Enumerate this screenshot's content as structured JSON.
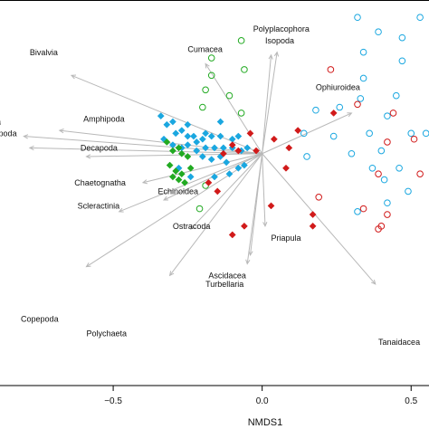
{
  "chart_data": {
    "type": "scatter",
    "title": "",
    "xlabel": "NMDS1",
    "ylabel": "",
    "xlim": [
      -0.88,
      0.56
    ],
    "ylim": [
      -0.8,
      0.53
    ],
    "x_ticks": [
      -0.5,
      0.0,
      0.5
    ],
    "x_tick_labels": [
      "−0.5",
      "0.0",
      "0.5"
    ],
    "grid": false,
    "colors": {
      "blue": "#1aa7e0",
      "red": "#d11a1a",
      "green": "#22aa22",
      "vector": "#b8b8b8",
      "frame": "#000000"
    },
    "series": [
      {
        "color": "blue",
        "shape": "open-circle",
        "points": [
          [
            0.32,
            0.47
          ],
          [
            0.53,
            0.47
          ],
          [
            0.39,
            0.42
          ],
          [
            0.47,
            0.4
          ],
          [
            0.34,
            0.35
          ],
          [
            0.47,
            0.32
          ],
          [
            0.34,
            0.26
          ],
          [
            0.33,
            0.19
          ],
          [
            0.45,
            0.2
          ],
          [
            0.26,
            0.16
          ],
          [
            0.18,
            0.15
          ],
          [
            0.42,
            0.13
          ],
          [
            0.36,
            0.07
          ],
          [
            0.14,
            0.07
          ],
          [
            0.24,
            0.06
          ],
          [
            0.5,
            0.07
          ],
          [
            0.55,
            0.07
          ],
          [
            0.4,
            0.01
          ],
          [
            0.3,
            0.0
          ],
          [
            0.15,
            -0.01
          ],
          [
            0.37,
            -0.05
          ],
          [
            0.46,
            -0.05
          ],
          [
            0.41,
            -0.09
          ],
          [
            0.49,
            -0.13
          ],
          [
            0.42,
            -0.17
          ],
          [
            0.32,
            -0.2
          ]
        ]
      },
      {
        "color": "red",
        "shape": "open-circle",
        "points": [
          [
            0.23,
            0.29
          ],
          [
            0.32,
            0.17
          ],
          [
            0.44,
            0.14
          ],
          [
            0.42,
            0.04
          ],
          [
            0.51,
            0.05
          ],
          [
            0.39,
            -0.07
          ],
          [
            0.53,
            -0.07
          ],
          [
            0.19,
            -0.15
          ],
          [
            0.34,
            -0.19
          ],
          [
            0.42,
            -0.21
          ],
          [
            0.4,
            -0.25
          ],
          [
            0.39,
            -0.26
          ]
        ]
      },
      {
        "color": "green",
        "shape": "open-circle",
        "points": [
          [
            -0.17,
            0.33
          ],
          [
            -0.07,
            0.39
          ],
          [
            -0.17,
            0.27
          ],
          [
            -0.06,
            0.29
          ],
          [
            -0.19,
            0.22
          ],
          [
            -0.11,
            0.2
          ],
          [
            -0.2,
            0.16
          ],
          [
            -0.07,
            0.14
          ],
          [
            -0.21,
            -0.19
          ],
          [
            -0.19,
            -0.11
          ]
        ]
      },
      {
        "color": "blue",
        "shape": "filled-diamond",
        "points": [
          [
            -0.34,
            0.13
          ],
          [
            -0.32,
            0.1
          ],
          [
            -0.3,
            0.11
          ],
          [
            -0.29,
            0.07
          ],
          [
            -0.27,
            0.08
          ],
          [
            -0.25,
            0.06
          ],
          [
            -0.23,
            0.06
          ],
          [
            -0.22,
            0.04
          ],
          [
            -0.2,
            0.05
          ],
          [
            -0.19,
            0.07
          ],
          [
            -0.17,
            0.06
          ],
          [
            -0.14,
            0.06
          ],
          [
            -0.1,
            0.05
          ],
          [
            -0.08,
            0.06
          ],
          [
            -0.33,
            0.05
          ],
          [
            -0.3,
            0.03
          ],
          [
            -0.27,
            0.02
          ],
          [
            -0.25,
            0.03
          ],
          [
            -0.22,
            0.01
          ],
          [
            -0.19,
            0.02
          ],
          [
            -0.16,
            0.02
          ],
          [
            -0.13,
            0.02
          ],
          [
            -0.1,
            0.02
          ],
          [
            -0.07,
            0.01
          ],
          [
            -0.05,
            0.02
          ],
          [
            -0.2,
            -0.01
          ],
          [
            -0.17,
            -0.02
          ],
          [
            -0.14,
            -0.01
          ],
          [
            -0.12,
            -0.03
          ],
          [
            -0.28,
            -0.05
          ],
          [
            -0.24,
            -0.08
          ],
          [
            -0.16,
            -0.08
          ],
          [
            -0.11,
            -0.07
          ],
          [
            -0.08,
            -0.05
          ],
          [
            -0.06,
            -0.04
          ],
          [
            -0.14,
            0.11
          ],
          [
            -0.25,
            0.1
          ]
        ]
      },
      {
        "color": "red",
        "shape": "filled-diamond",
        "points": [
          [
            0.24,
            0.14
          ],
          [
            0.12,
            0.08
          ],
          [
            -0.04,
            0.07
          ],
          [
            0.04,
            0.05
          ],
          [
            -0.02,
            0.01
          ],
          [
            -0.08,
            0.01
          ],
          [
            -0.1,
            0.03
          ],
          [
            0.09,
            0.02
          ],
          [
            -0.13,
            0.0
          ],
          [
            0.08,
            -0.05
          ],
          [
            -0.18,
            -0.1
          ],
          [
            -0.15,
            -0.13
          ],
          [
            0.03,
            -0.18
          ],
          [
            0.17,
            -0.21
          ],
          [
            -0.06,
            -0.25
          ],
          [
            -0.1,
            -0.28
          ],
          [
            0.17,
            -0.25
          ]
        ]
      },
      {
        "color": "green",
        "shape": "filled-diamond",
        "points": [
          [
            -0.32,
            0.04
          ],
          [
            -0.3,
            0.01
          ],
          [
            -0.28,
            0.02
          ],
          [
            -0.27,
            0.0
          ],
          [
            -0.25,
            -0.01
          ],
          [
            -0.31,
            -0.04
          ],
          [
            -0.29,
            -0.06
          ],
          [
            -0.27,
            -0.07
          ],
          [
            -0.24,
            -0.05
          ],
          [
            -0.3,
            -0.08
          ],
          [
            -0.28,
            -0.09
          ],
          [
            -0.26,
            -0.1
          ]
        ]
      }
    ],
    "vectors": [
      {
        "label": "Polyplacophora",
        "x": 0.05,
        "y": 0.35
      },
      {
        "label": "Isopoda",
        "x": 0.03,
        "y": 0.34
      },
      {
        "label": "Cumacea",
        "x": -0.19,
        "y": 0.31
      },
      {
        "label": "Bivalvia",
        "x": -0.64,
        "y": 0.27
      },
      {
        "label": "Ophiuroidea",
        "x": 0.3,
        "y": 0.14
      },
      {
        "label": "Amphipoda",
        "x": -0.68,
        "y": 0.08
      },
      {
        "label": "Decapoda",
        "x": -0.59,
        "y": -0.01
      },
      {
        "label": "",
        "x": -0.8,
        "y": 0.06
      },
      {
        "label": "",
        "x": -0.78,
        "y": 0.02
      },
      {
        "label": "Chaetognatha",
        "x": -0.4,
        "y": -0.1
      },
      {
        "label": "Echinoidea",
        "x": -0.33,
        "y": -0.16
      },
      {
        "label": "Scleractinia",
        "x": -0.48,
        "y": -0.2
      },
      {
        "label": "Ostracoda",
        "x": -0.24,
        "y": -0.26
      },
      {
        "label": "Priapula",
        "x": 0.01,
        "y": -0.25
      },
      {
        "label": "Ascidacea",
        "x": -0.04,
        "y": -0.35
      },
      {
        "label": "Turbellaria",
        "x": -0.05,
        "y": -0.38
      },
      {
        "label": "Copepoda",
        "x": -0.59,
        "y": -0.39
      },
      {
        "label": "Polychaeta",
        "x": -0.31,
        "y": -0.42
      },
      {
        "label": "Tanaidacea",
        "x": 0.38,
        "y": -0.45
      }
    ],
    "annotations": [
      {
        "text": "Bivalvia",
        "x": -0.78,
        "y": 0.34
      },
      {
        "text": "Polyplacophora",
        "x": -0.03,
        "y": 0.42
      },
      {
        "text": "Isopoda",
        "x": 0.01,
        "y": 0.38
      },
      {
        "text": "Cumacea",
        "x": -0.25,
        "y": 0.35
      },
      {
        "text": "Ophiuroidea",
        "x": 0.18,
        "y": 0.22
      },
      {
        "text": "ifera",
        "x": -0.93,
        "y": 0.1
      },
      {
        "text": "stropoda",
        "x": -0.93,
        "y": 0.06
      },
      {
        "text": "Amphipoda",
        "x": -0.6,
        "y": 0.11
      },
      {
        "text": "Decapoda",
        "x": -0.61,
        "y": 0.01
      },
      {
        "text": "Chaetognatha",
        "x": -0.63,
        "y": -0.11
      },
      {
        "text": "Echinoidea",
        "x": -0.35,
        "y": -0.14
      },
      {
        "text": "Scleractinia",
        "x": -0.62,
        "y": -0.19
      },
      {
        "text": "Ostracoda",
        "x": -0.3,
        "y": -0.26
      },
      {
        "text": "Priapula",
        "x": 0.03,
        "y": -0.3
      },
      {
        "text": "Ascidacea",
        "x": -0.18,
        "y": -0.43
      },
      {
        "text": "Turbellaria",
        "x": -0.19,
        "y": -0.46
      },
      {
        "text": "Copepoda",
        "x": -0.81,
        "y": -0.58
      },
      {
        "text": "Polychaeta",
        "x": -0.59,
        "y": -0.63
      },
      {
        "text": "Tanaidacea",
        "x": 0.39,
        "y": -0.66
      }
    ]
  }
}
